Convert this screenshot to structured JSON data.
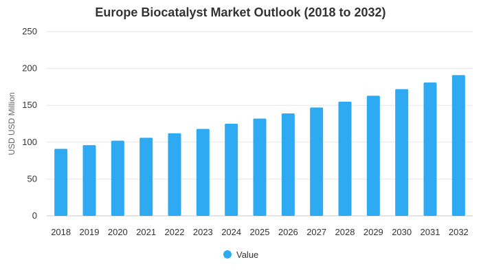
{
  "chart_data": {
    "type": "bar",
    "title": "Europe Biocatalyst Market Outlook (2018 to 2032)",
    "xlabel": "",
    "ylabel": "USD USD Million",
    "ylim": [
      0,
      250
    ],
    "yticks": [
      0,
      50,
      100,
      150,
      200,
      250
    ],
    "grid": true,
    "legend_position": "bottom",
    "categories": [
      "2018",
      "2019",
      "2020",
      "2021",
      "2022",
      "2023",
      "2024",
      "2025",
      "2026",
      "2027",
      "2028",
      "2029",
      "2030",
      "2031",
      "2032"
    ],
    "series": [
      {
        "name": "Value",
        "color": "#2eaaf2",
        "values": [
          91,
          96,
          102,
          106,
          112,
          118,
          125,
          132,
          139,
          147,
          155,
          163,
          172,
          181,
          191
        ]
      }
    ]
  }
}
